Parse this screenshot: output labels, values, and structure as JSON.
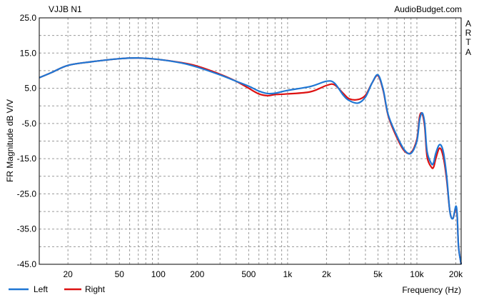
{
  "chart_data": {
    "type": "line",
    "header_left": "VJJB N1",
    "header_right": "AudioBudget.com",
    "side_label": [
      "A",
      "R",
      "T",
      "A"
    ],
    "ylabel": "FR Magnitude dB V/V",
    "xlabel": "Frequency (Hz)",
    "x_scale": "log",
    "xlim": [
      12,
      22000
    ],
    "ylim": [
      -45,
      25
    ],
    "y_ticks": [
      25.0,
      15.0,
      5.0,
      -5.0,
      -15.0,
      -25.0,
      -35.0,
      -45.0
    ],
    "y_tick_labels": [
      "25.0",
      "15.0",
      "5.0",
      "-5.0",
      "-15.0",
      "-25.0",
      "-35.0",
      "-45.0"
    ],
    "x_ticks": [
      20,
      50,
      100,
      200,
      500,
      1000,
      2000,
      5000,
      10000,
      20000
    ],
    "x_tick_labels": [
      "20",
      "50",
      "100",
      "200",
      "500",
      "1k",
      "2k",
      "5k",
      "10k",
      "20k"
    ],
    "grid": true,
    "legend_position": "bottom-left",
    "series": [
      {
        "name": "Left",
        "color": "#1f77d4",
        "x": [
          12,
          15,
          20,
          30,
          50,
          70,
          100,
          150,
          200,
          300,
          400,
          500,
          600,
          700,
          800,
          1000,
          1500,
          2000,
          2300,
          2700,
          3000,
          3500,
          4000,
          4500,
          5000,
          5500,
          6000,
          7000,
          8000,
          9000,
          10000,
          10500,
          11000,
          11500,
          12000,
          13000,
          13500,
          14000,
          15000,
          16000,
          17000,
          18000,
          19000,
          20000,
          20500,
          21000,
          22000
        ],
        "values": [
          8.0,
          9.5,
          11.5,
          12.5,
          13.4,
          13.6,
          13.2,
          12.2,
          11.0,
          8.8,
          7.0,
          5.6,
          4.2,
          3.5,
          3.6,
          4.4,
          5.5,
          7.0,
          6.5,
          3.0,
          1.5,
          0.8,
          2.5,
          6.5,
          8.8,
          4.5,
          -2.5,
          -8.5,
          -12.5,
          -13.5,
          -10.0,
          -4.0,
          -2.0,
          -5.0,
          -13.0,
          -16.5,
          -16.0,
          -13.5,
          -11.0,
          -13.0,
          -20.0,
          -30.0,
          -32.0,
          -28.5,
          -31.0,
          -40.0,
          -45.0
        ]
      },
      {
        "name": "Right",
        "color": "#dd1111",
        "x": [
          12,
          15,
          20,
          30,
          50,
          70,
          100,
          150,
          200,
          300,
          400,
          500,
          600,
          700,
          800,
          1000,
          1500,
          2000,
          2300,
          2700,
          3000,
          3500,
          4000,
          4500,
          5000,
          5500,
          6000,
          7000,
          8000,
          9000,
          10000,
          10500,
          11000,
          11500,
          12000,
          13000,
          13500,
          14000,
          15000,
          16000,
          17000,
          18000,
          19000,
          20000,
          20500,
          21000,
          22000
        ],
        "values": [
          8.0,
          9.5,
          11.5,
          12.5,
          13.4,
          13.6,
          13.2,
          12.3,
          11.3,
          9.0,
          7.0,
          5.0,
          3.4,
          2.9,
          3.2,
          3.4,
          4.0,
          5.8,
          6.0,
          3.5,
          2.0,
          1.8,
          3.0,
          6.5,
          8.6,
          4.2,
          -2.8,
          -9.0,
          -12.8,
          -13.3,
          -9.5,
          -3.0,
          -2.3,
          -6.0,
          -14.5,
          -17.5,
          -17.3,
          -15.0,
          -12.0,
          -14.5,
          -21.0,
          -30.0,
          -32.0,
          -29.0,
          -31.5,
          -40.0,
          -45.0
        ]
      }
    ]
  }
}
